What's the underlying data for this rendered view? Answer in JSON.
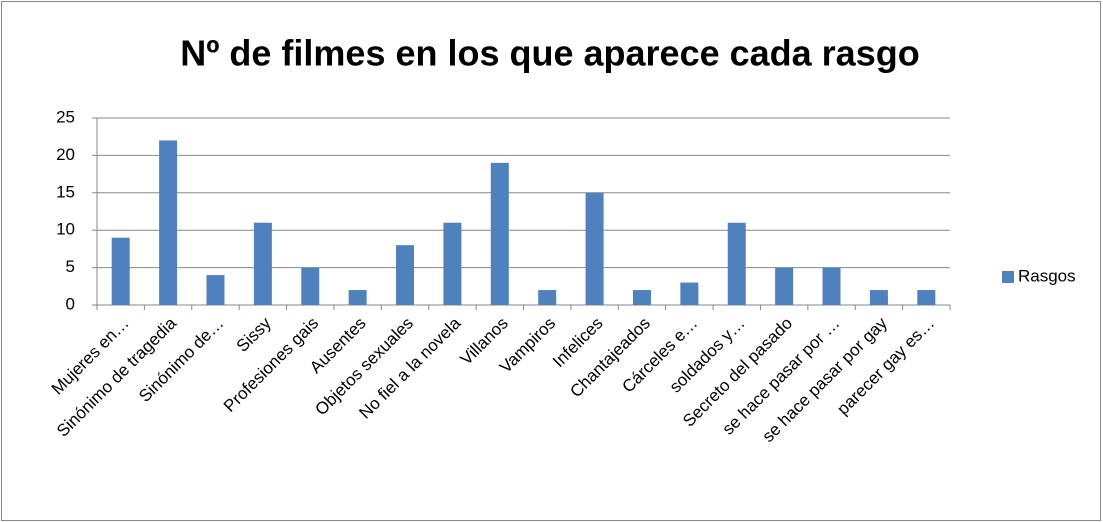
{
  "chart_data": {
    "type": "bar",
    "title": "Nº de filmes en los que aparece cada rasgo",
    "categories": [
      "Mujeres en…",
      "Sinónimo de tragedia",
      "Sinónimo de…",
      "Sissy",
      "Profesiones gais",
      "Ausentes",
      "Objetos sexuales",
      "No fiel a la novela",
      "Villanos",
      "Vampiros",
      "Infelices",
      "Chantajeados",
      "Cárceles e…",
      "soldados y…",
      "Secreto del pasado",
      "se hace pasar por …",
      "se hace pasar por gay",
      "parecer gay es…"
    ],
    "series": [
      {
        "name": "Rasgos",
        "color": "#4f81bd",
        "values": [
          9,
          22,
          4,
          11,
          5,
          2,
          8,
          11,
          19,
          2,
          15,
          2,
          3,
          11,
          5,
          5,
          2,
          2
        ]
      }
    ],
    "ylim": [
      0,
      25
    ],
    "yticks": [
      0,
      5,
      10,
      15,
      20,
      25
    ],
    "grid": true,
    "legend": "right"
  }
}
